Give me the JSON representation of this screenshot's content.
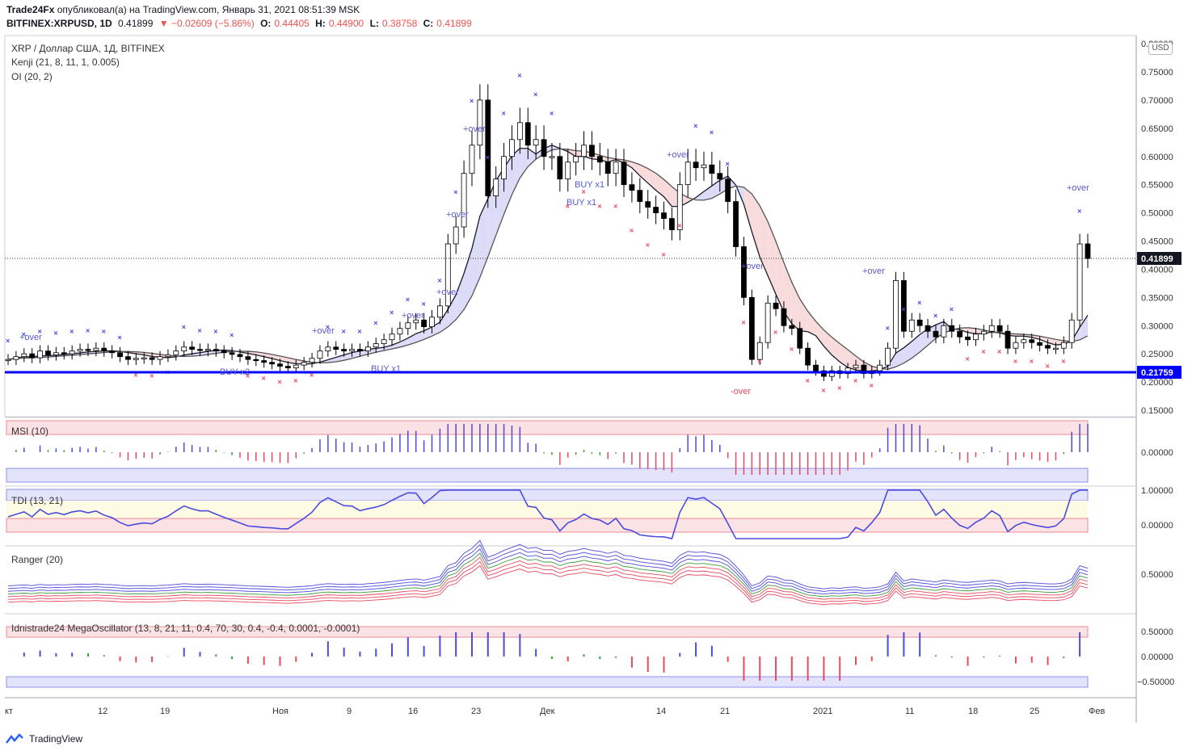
{
  "header": {
    "publisher": "Trade24Fx",
    "published_text": "опубликовал(а) на TradingView.com, Январь 31, 2021 08:51:39 MSK",
    "symbol": "BITFINEX:XRPUSD, 1D",
    "last": "0.41899",
    "change": "▼ −0.02609 (−5.86%)",
    "o_label": "O:",
    "o": "0.44405",
    "h_label": "H:",
    "h": "0.44900",
    "l_label": "L:",
    "l": "0.38758",
    "c_label": "C:",
    "c": "0.41899"
  },
  "legend": {
    "main": "XRP / Доллар США, 1Д, BITFINEX",
    "kenji": "Kenji (21, 8, 11, 1, 0.005)",
    "oi": "OI (20, 2)",
    "msi": "MSI (10)",
    "tdi": "TDI (13, 21)",
    "ranger": "Ranger (20)",
    "mega": "Idnistrade24 MegaOscillator (13, 8, 21, 11, 0.4, 70, 30, 0.4, -0.4, 0.0001, -0.0001)"
  },
  "currency_button": "USD",
  "price_axis": [
    "0.75000",
    "0.70000",
    "0.65000",
    "0.60000",
    "0.55000",
    "0.50000",
    "0.45000",
    "0.40000",
    "0.35000",
    "0.30000",
    "0.25000",
    "0.20000",
    "0.15000"
  ],
  "price_axis_top": "0.80000",
  "last_price_tag": "0.41899",
  "support_tag": "0.21759",
  "msi_axis": [
    "0.00000"
  ],
  "tdi_axis": [
    "1.00000",
    "0.00000"
  ],
  "ranger_axis": [
    "0.50000"
  ],
  "mega_axis": [
    "0.50000",
    "0.00000",
    "−0.50000"
  ],
  "time_axis": [
    "кт",
    "12",
    "19",
    "Ноя",
    "9",
    "16",
    "23",
    "Дек",
    "14",
    "21",
    "2021",
    "11",
    "18",
    "25",
    "Фев"
  ],
  "annotations": {
    "over_plus": "+over",
    "over_minus": "-over",
    "buy_x1": "BUY x1",
    "buy_x2": "BUY x2"
  },
  "footer": {
    "brand": "TradingView"
  },
  "colors": {
    "up_candle": "#ffffff",
    "down_candle": "#000000",
    "support": "#0000ff",
    "blue_signal": "#4b4bdc",
    "red_signal": "#e84a5f",
    "green": "#3c9a3c"
  },
  "chart_data": [
    {
      "type": "candlestick",
      "title": "XRP / Доллар США, 1Д, BITFINEX",
      "ylim": [
        0.13,
        0.8
      ],
      "support_level": 0.21759,
      "last_close": 0.41899,
      "closes": [
        0.24,
        0.245,
        0.25,
        0.243,
        0.255,
        0.248,
        0.252,
        0.25,
        0.255,
        0.258,
        0.256,
        0.26,
        0.255,
        0.252,
        0.245,
        0.24,
        0.242,
        0.243,
        0.24,
        0.245,
        0.248,
        0.255,
        0.262,
        0.258,
        0.256,
        0.258,
        0.255,
        0.252,
        0.249,
        0.245,
        0.24,
        0.238,
        0.235,
        0.232,
        0.228,
        0.225,
        0.23,
        0.235,
        0.242,
        0.255,
        0.262,
        0.258,
        0.255,
        0.258,
        0.255,
        0.262,
        0.268,
        0.275,
        0.285,
        0.295,
        0.305,
        0.31,
        0.298,
        0.315,
        0.335,
        0.445,
        0.475,
        0.57,
        0.62,
        0.7,
        0.53,
        0.56,
        0.6,
        0.63,
        0.66,
        0.62,
        0.63,
        0.6,
        0.6,
        0.56,
        0.59,
        0.6,
        0.62,
        0.6,
        0.59,
        0.57,
        0.59,
        0.55,
        0.54,
        0.52,
        0.51,
        0.5,
        0.49,
        0.47,
        0.55,
        0.59,
        0.58,
        0.585,
        0.57,
        0.56,
        0.52,
        0.44,
        0.35,
        0.24,
        0.27,
        0.34,
        0.33,
        0.3,
        0.295,
        0.26,
        0.23,
        0.22,
        0.21,
        0.22,
        0.215,
        0.225,
        0.23,
        0.215,
        0.22,
        0.23,
        0.26,
        0.38,
        0.29,
        0.31,
        0.3,
        0.29,
        0.28,
        0.3,
        0.29,
        0.28,
        0.275,
        0.285,
        0.29,
        0.3,
        0.29,
        0.26,
        0.27,
        0.275,
        0.27,
        0.265,
        0.26,
        0.26,
        0.27,
        0.31,
        0.445,
        0.41899
      ]
    },
    {
      "type": "bar",
      "title": "MSI (10)",
      "ylim": [
        -0.3,
        0.3
      ]
    },
    {
      "type": "line",
      "title": "TDI (13, 21)",
      "ylim": [
        -0.3,
        1.05
      ]
    },
    {
      "type": "line",
      "title": "Ranger (20)",
      "ylim": [
        0.0,
        0.9
      ]
    },
    {
      "type": "bar",
      "title": "Idnistrade24 MegaOscillator (13, 8, 21, 11, 0.4, 70, 30, 0.4, -0.4, 0.0001, -0.0001)",
      "ylim": [
        -0.75,
        0.75
      ]
    }
  ]
}
